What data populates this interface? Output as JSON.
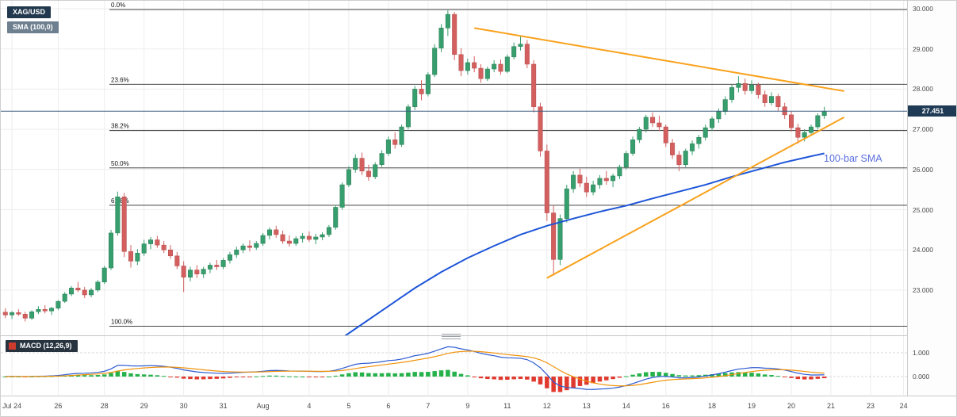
{
  "header": {
    "symbol_badge": "XAG/USD",
    "sma_badge": "SMA (100,0)"
  },
  "colors": {
    "candle_up": "#379e6e",
    "candle_up_border": "#2b7d56",
    "candle_down": "#d35f5f",
    "candle_down_border": "#b44b4b",
    "sma": "#1d55d8",
    "trendline": "#f9a11b",
    "price_line": "#3b5d80",
    "hist_up": "#25b24a",
    "hist_down": "#e03a2f",
    "macd_line": "#2d5bd1",
    "signal_line": "#f0930a",
    "grid": "#ededed",
    "fib_line": "#2b2b2b"
  },
  "chart_data": {
    "type": "candlestick",
    "symbol": "XAG/USD",
    "current_price": {
      "value": 27.451,
      "label": "27.451"
    },
    "price_axis": {
      "min": 22.0,
      "max": 30.2,
      "ticks": [
        {
          "label": "30.000",
          "price": 30.0
        },
        {
          "label": "29.000",
          "price": 29.0
        },
        {
          "label": "28.000",
          "price": 28.0
        },
        {
          "label": "27.000",
          "price": 27.0
        },
        {
          "label": "26.000",
          "price": 26.0
        },
        {
          "label": "25.000",
          "price": 25.0
        },
        {
          "label": "24.000",
          "price": 24.0
        },
        {
          "label": "23.000",
          "price": 23.0
        }
      ]
    },
    "x_labels": [
      {
        "label": "Jul 24",
        "bar": 1
      },
      {
        "label": "26",
        "bar": 8
      },
      {
        "label": "28",
        "bar": 15
      },
      {
        "label": "29",
        "bar": 21
      },
      {
        "label": "30",
        "bar": 27
      },
      {
        "label": "31",
        "bar": 33
      },
      {
        "label": "Aug",
        "bar": 39
      },
      {
        "label": "4",
        "bar": 46
      },
      {
        "label": "5",
        "bar": 52
      },
      {
        "label": "6",
        "bar": 58
      },
      {
        "label": "7",
        "bar": 64
      },
      {
        "label": "9",
        "bar": 70
      },
      {
        "label": "11",
        "bar": 76
      },
      {
        "label": "12",
        "bar": 82
      },
      {
        "label": "13",
        "bar": 88
      },
      {
        "label": "14",
        "bar": 94
      },
      {
        "label": "16",
        "bar": 100
      },
      {
        "label": "18",
        "bar": 107
      },
      {
        "label": "19",
        "bar": 113
      },
      {
        "label": "20",
        "bar": 119
      },
      {
        "label": "21",
        "bar": 125
      },
      {
        "label": "23",
        "bar": 131
      },
      {
        "label": "24",
        "bar": 136
      }
    ],
    "fib_levels": [
      {
        "label": "0.0%",
        "price": 29.98
      },
      {
        "label": "23.6%",
        "price": 28.12
      },
      {
        "label": "38.2%",
        "price": 26.97
      },
      {
        "label": "50.0%",
        "price": 26.04
      },
      {
        "label": "61.8%",
        "price": 25.11
      },
      {
        "label": "100.0%",
        "price": 22.1
      }
    ],
    "sma": {
      "label": "100-bar SMA",
      "points": [
        [
          50,
          21.7
        ],
        [
          54,
          22.15
        ],
        [
          58,
          22.6
        ],
        [
          62,
          23.05
        ],
        [
          66,
          23.45
        ],
        [
          70,
          23.8
        ],
        [
          74,
          24.1
        ],
        [
          78,
          24.38
        ],
        [
          82,
          24.6
        ],
        [
          86,
          24.78
        ],
        [
          90,
          24.95
        ],
        [
          94,
          25.1
        ],
        [
          98,
          25.28
        ],
        [
          102,
          25.45
        ],
        [
          106,
          25.62
        ],
        [
          110,
          25.82
        ],
        [
          114,
          26.0
        ],
        [
          118,
          26.18
        ],
        [
          122,
          26.33
        ],
        [
          124,
          26.4
        ]
      ]
    },
    "trendlines": [
      {
        "name": "descending-resistance",
        "from": [
          71,
          29.52
        ],
        "to": [
          127,
          27.95
        ]
      },
      {
        "name": "ascending-support",
        "from": [
          82,
          23.3
        ],
        "to": [
          127,
          27.3
        ]
      }
    ],
    "macd": {
      "label": "MACD (12,26,9)",
      "params": [
        12,
        26,
        9
      ],
      "axis_ticks": [
        {
          "label": "1.000",
          "value": 1.0
        },
        {
          "label": "0.000",
          "value": 0.0
        }
      ]
    },
    "candles": [
      [
        22.45,
        22.55,
        22.3,
        22.38
      ],
      [
        22.38,
        22.48,
        22.28,
        22.44
      ],
      [
        22.44,
        22.52,
        22.36,
        22.4
      ],
      [
        22.4,
        22.46,
        22.22,
        22.3
      ],
      [
        22.3,
        22.5,
        22.26,
        22.46
      ],
      [
        22.46,
        22.6,
        22.4,
        22.52
      ],
      [
        22.52,
        22.62,
        22.42,
        22.48
      ],
      [
        22.48,
        22.58,
        22.38,
        22.55
      ],
      [
        22.55,
        22.75,
        22.5,
        22.72
      ],
      [
        22.72,
        22.95,
        22.68,
        22.9
      ],
      [
        22.9,
        23.1,
        22.85,
        23.05
      ],
      [
        23.05,
        23.2,
        22.95,
        23.0
      ],
      [
        23.0,
        23.08,
        22.8,
        22.88
      ],
      [
        22.88,
        23.05,
        22.82,
        23.0
      ],
      [
        23.0,
        23.25,
        22.95,
        23.2
      ],
      [
        23.2,
        23.6,
        23.15,
        23.55
      ],
      [
        23.55,
        24.5,
        23.5,
        24.42
      ],
      [
        24.42,
        25.45,
        24.35,
        25.32
      ],
      [
        25.32,
        25.42,
        23.82,
        23.96
      ],
      [
        23.96,
        24.12,
        23.56,
        23.72
      ],
      [
        23.72,
        24.02,
        23.62,
        23.92
      ],
      [
        23.92,
        24.25,
        23.85,
        24.15
      ],
      [
        24.15,
        24.32,
        24.02,
        24.25
      ],
      [
        24.25,
        24.35,
        24.05,
        24.12
      ],
      [
        24.12,
        24.22,
        23.92,
        24.0
      ],
      [
        24.0,
        24.12,
        23.78,
        23.85
      ],
      [
        23.85,
        23.95,
        23.52,
        23.6
      ],
      [
        23.6,
        23.72,
        22.95,
        23.32
      ],
      [
        23.32,
        23.58,
        23.22,
        23.5
      ],
      [
        23.5,
        23.62,
        23.3,
        23.4
      ],
      [
        23.4,
        23.58,
        23.3,
        23.52
      ],
      [
        23.52,
        23.68,
        23.42,
        23.62
      ],
      [
        23.62,
        23.75,
        23.5,
        23.58
      ],
      [
        23.58,
        23.8,
        23.52,
        23.74
      ],
      [
        23.74,
        23.95,
        23.66,
        23.88
      ],
      [
        23.88,
        24.08,
        23.8,
        24.0
      ],
      [
        24.0,
        24.16,
        23.92,
        24.1
      ],
      [
        24.1,
        24.24,
        23.96,
        24.06
      ],
      [
        24.06,
        24.22,
        24.0,
        24.16
      ],
      [
        24.16,
        24.42,
        24.1,
        24.36
      ],
      [
        24.36,
        24.56,
        24.26,
        24.5
      ],
      [
        24.5,
        24.6,
        24.3,
        24.38
      ],
      [
        24.38,
        24.48,
        24.15,
        24.22
      ],
      [
        24.22,
        24.36,
        24.08,
        24.16
      ],
      [
        24.16,
        24.34,
        24.1,
        24.28
      ],
      [
        24.28,
        24.42,
        24.18,
        24.34
      ],
      [
        24.34,
        24.46,
        24.2,
        24.26
      ],
      [
        24.26,
        24.4,
        24.14,
        24.32
      ],
      [
        24.32,
        24.44,
        24.24,
        24.38
      ],
      [
        24.38,
        24.62,
        24.32,
        24.56
      ],
      [
        24.56,
        25.12,
        24.5,
        25.06
      ],
      [
        25.06,
        25.68,
        25.0,
        25.62
      ],
      [
        25.62,
        26.08,
        25.56,
        26.0
      ],
      [
        26.0,
        26.38,
        25.92,
        26.28
      ],
      [
        26.28,
        26.42,
        25.86,
        25.96
      ],
      [
        25.96,
        26.12,
        25.72,
        25.82
      ],
      [
        25.82,
        26.18,
        25.76,
        26.12
      ],
      [
        26.12,
        26.48,
        26.06,
        26.4
      ],
      [
        26.4,
        26.82,
        26.34,
        26.74
      ],
      [
        26.74,
        26.92,
        26.52,
        26.62
      ],
      [
        26.62,
        27.12,
        26.56,
        27.06
      ],
      [
        27.06,
        27.62,
        27.0,
        27.56
      ],
      [
        27.56,
        28.08,
        27.48,
        28.0
      ],
      [
        28.0,
        28.22,
        27.72,
        27.88
      ],
      [
        27.88,
        28.42,
        27.82,
        28.36
      ],
      [
        28.36,
        29.12,
        28.3,
        29.02
      ],
      [
        29.02,
        29.62,
        28.92,
        29.52
      ],
      [
        29.52,
        29.96,
        29.32,
        29.86
      ],
      [
        29.86,
        29.92,
        28.72,
        28.86
      ],
      [
        28.86,
        29.02,
        28.32,
        28.46
      ],
      [
        28.46,
        28.76,
        28.36,
        28.66
      ],
      [
        28.66,
        28.82,
        28.42,
        28.52
      ],
      [
        28.52,
        28.62,
        28.16,
        28.26
      ],
      [
        28.26,
        28.56,
        28.2,
        28.5
      ],
      [
        28.5,
        28.72,
        28.42,
        28.62
      ],
      [
        28.62,
        28.74,
        28.36,
        28.44
      ],
      [
        28.44,
        28.86,
        28.4,
        28.8
      ],
      [
        28.8,
        29.16,
        28.74,
        29.06
      ],
      [
        29.06,
        29.32,
        28.96,
        29.12
      ],
      [
        29.12,
        29.22,
        28.52,
        28.62
      ],
      [
        28.62,
        28.72,
        27.42,
        27.56
      ],
      [
        27.56,
        27.66,
        26.32,
        26.46
      ],
      [
        26.46,
        26.62,
        24.72,
        24.92
      ],
      [
        24.92,
        25.12,
        23.36,
        23.76
      ],
      [
        23.76,
        24.88,
        23.62,
        24.78
      ],
      [
        24.78,
        25.62,
        24.68,
        25.52
      ],
      [
        25.52,
        25.96,
        25.42,
        25.86
      ],
      [
        25.86,
        26.02,
        25.56,
        25.66
      ],
      [
        25.66,
        25.82,
        25.32,
        25.44
      ],
      [
        25.44,
        25.72,
        25.36,
        25.62
      ],
      [
        25.62,
        25.86,
        25.52,
        25.78
      ],
      [
        25.78,
        25.96,
        25.62,
        25.72
      ],
      [
        25.72,
        25.9,
        25.56,
        25.84
      ],
      [
        25.84,
        26.12,
        25.76,
        26.06
      ],
      [
        26.06,
        26.46,
        26.0,
        26.4
      ],
      [
        26.4,
        26.82,
        26.34,
        26.74
      ],
      [
        26.74,
        27.06,
        26.66,
        27.0
      ],
      [
        27.0,
        27.36,
        26.92,
        27.3
      ],
      [
        27.3,
        27.42,
        27.06,
        27.16
      ],
      [
        27.16,
        27.34,
        26.96,
        27.06
      ],
      [
        27.06,
        27.12,
        26.56,
        26.66
      ],
      [
        26.66,
        26.76,
        26.26,
        26.36
      ],
      [
        26.36,
        26.46,
        25.96,
        26.12
      ],
      [
        26.12,
        26.52,
        26.06,
        26.46
      ],
      [
        26.46,
        26.72,
        26.36,
        26.64
      ],
      [
        26.64,
        26.86,
        26.52,
        26.8
      ],
      [
        26.8,
        27.12,
        26.72,
        27.04
      ],
      [
        27.04,
        27.32,
        26.96,
        27.26
      ],
      [
        27.26,
        27.52,
        27.16,
        27.44
      ],
      [
        27.44,
        27.82,
        27.36,
        27.74
      ],
      [
        27.74,
        28.12,
        27.66,
        28.04
      ],
      [
        28.04,
        28.32,
        27.92,
        28.14
      ],
      [
        28.14,
        28.26,
        27.86,
        27.96
      ],
      [
        27.96,
        28.22,
        27.88,
        28.1
      ],
      [
        28.1,
        28.16,
        27.76,
        27.86
      ],
      [
        27.86,
        27.96,
        27.56,
        27.66
      ],
      [
        27.66,
        27.92,
        27.6,
        27.82
      ],
      [
        27.82,
        27.88,
        27.46,
        27.56
      ],
      [
        27.56,
        27.66,
        27.26,
        27.36
      ],
      [
        27.36,
        27.44,
        26.94,
        27.04
      ],
      [
        27.04,
        27.14,
        26.64,
        26.8
      ],
      [
        26.8,
        27.0,
        26.7,
        26.92
      ],
      [
        26.92,
        27.12,
        26.84,
        27.06
      ],
      [
        27.06,
        27.4,
        27.0,
        27.34
      ],
      [
        27.34,
        27.56,
        27.26,
        27.45
      ]
    ]
  }
}
